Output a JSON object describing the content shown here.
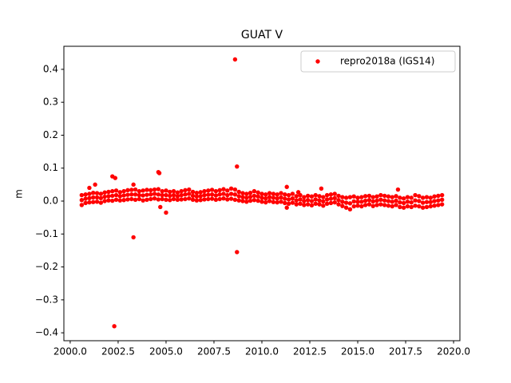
{
  "chart_data": {
    "type": "scatter",
    "title": "GUAT V",
    "y_label": "m",
    "xlim": [
      1999.67,
      2020.33
    ],
    "ylim": [
      -0.424,
      0.47
    ],
    "xticks": [
      {
        "value": 2000,
        "label": "2000.0"
      },
      {
        "value": 2002.5,
        "label": "2002.5"
      },
      {
        "value": 2005,
        "label": "2005.0"
      },
      {
        "value": 2007.5,
        "label": "2007.5"
      },
      {
        "value": 2010,
        "label": "2010.0"
      },
      {
        "value": 2012.5,
        "label": "2012.5"
      },
      {
        "value": 2015,
        "label": "2015.0"
      },
      {
        "value": 2017.5,
        "label": "2017.5"
      },
      {
        "value": 2020,
        "label": "2020.0"
      }
    ],
    "yticks": [
      {
        "value": -0.4,
        "label": "−0.4"
      },
      {
        "value": -0.3,
        "label": "−0.3"
      },
      {
        "value": -0.2,
        "label": "−0.2"
      },
      {
        "value": -0.1,
        "label": "−0.1"
      },
      {
        "value": 0,
        "label": "0.0"
      },
      0.1,
      0.2,
      0.3,
      0.4
    ],
    "grid": false,
    "legend_position": "upper right",
    "series": [
      {
        "name": "repro2018a (IGS14)",
        "color": "#ff0000",
        "x": [
          2000.6,
          2000.6,
          2000.6,
          2000.8,
          2000.8,
          2000.8,
          2001.0,
          2001.0,
          2001.0,
          2001.2,
          2001.2,
          2001.2,
          2001.4,
          2001.4,
          2001.4,
          2001.6,
          2001.6,
          2001.6,
          2001.8,
          2001.8,
          2001.8,
          2002.0,
          2002.0,
          2002.0,
          2002.2,
          2002.2,
          2002.2,
          2002.4,
          2002.4,
          2002.4,
          2002.6,
          2002.6,
          2002.6,
          2002.8,
          2002.8,
          2002.8,
          2003.0,
          2003.0,
          2003.0,
          2003.2,
          2003.2,
          2003.2,
          2003.4,
          2003.4,
          2003.4,
          2003.6,
          2003.6,
          2003.6,
          2003.8,
          2003.8,
          2003.8,
          2004.0,
          2004.0,
          2004.0,
          2004.2,
          2004.2,
          2004.2,
          2004.4,
          2004.4,
          2004.4,
          2004.6,
          2004.6,
          2004.6,
          2004.8,
          2004.8,
          2004.8,
          2005.0,
          2005.0,
          2005.0,
          2005.2,
          2005.2,
          2005.2,
          2005.4,
          2005.4,
          2005.4,
          2005.6,
          2005.6,
          2005.6,
          2005.8,
          2005.8,
          2005.8,
          2006.0,
          2006.0,
          2006.0,
          2006.2,
          2006.2,
          2006.2,
          2006.4,
          2006.4,
          2006.4,
          2006.6,
          2006.6,
          2006.6,
          2006.8,
          2006.8,
          2006.8,
          2007.0,
          2007.0,
          2007.0,
          2007.2,
          2007.2,
          2007.2,
          2007.4,
          2007.4,
          2007.4,
          2007.6,
          2007.6,
          2007.6,
          2007.8,
          2007.8,
          2007.8,
          2008.0,
          2008.0,
          2008.0,
          2008.2,
          2008.2,
          2008.2,
          2008.4,
          2008.4,
          2008.4,
          2008.6,
          2008.6,
          2008.6,
          2008.8,
          2008.8,
          2008.8,
          2009.0,
          2009.0,
          2009.0,
          2009.2,
          2009.2,
          2009.2,
          2009.4,
          2009.4,
          2009.4,
          2009.6,
          2009.6,
          2009.6,
          2009.8,
          2009.8,
          2009.8,
          2010.0,
          2010.0,
          2010.0,
          2010.2,
          2010.2,
          2010.2,
          2010.4,
          2010.4,
          2010.4,
          2010.6,
          2010.6,
          2010.6,
          2010.8,
          2010.8,
          2010.8,
          2011.0,
          2011.0,
          2011.0,
          2011.2,
          2011.2,
          2011.2,
          2011.4,
          2011.4,
          2011.4,
          2011.6,
          2011.6,
          2011.6,
          2011.8,
          2011.8,
          2011.8,
          2012.0,
          2012.0,
          2012.0,
          2012.2,
          2012.2,
          2012.2,
          2012.4,
          2012.4,
          2012.4,
          2012.6,
          2012.6,
          2012.6,
          2012.8,
          2012.8,
          2012.8,
          2013.0,
          2013.0,
          2013.0,
          2013.2,
          2013.2,
          2013.2,
          2013.4,
          2013.4,
          2013.4,
          2013.6,
          2013.6,
          2013.6,
          2013.8,
          2013.8,
          2013.8,
          2014.0,
          2014.0,
          2014.0,
          2014.2,
          2014.2,
          2014.2,
          2014.4,
          2014.4,
          2014.4,
          2014.6,
          2014.6,
          2014.6,
          2014.8,
          2014.8,
          2014.8,
          2015.0,
          2015.0,
          2015.0,
          2015.2,
          2015.2,
          2015.2,
          2015.4,
          2015.4,
          2015.4,
          2015.6,
          2015.6,
          2015.6,
          2015.8,
          2015.8,
          2015.8,
          2016.0,
          2016.0,
          2016.0,
          2016.2,
          2016.2,
          2016.2,
          2016.4,
          2016.4,
          2016.4,
          2016.6,
          2016.6,
          2016.6,
          2016.8,
          2016.8,
          2016.8,
          2017.0,
          2017.0,
          2017.0,
          2017.2,
          2017.2,
          2017.2,
          2017.4,
          2017.4,
          2017.4,
          2017.6,
          2017.6,
          2017.6,
          2017.8,
          2017.8,
          2017.8,
          2018.0,
          2018.0,
          2018.0,
          2018.2,
          2018.2,
          2018.2,
          2018.4,
          2018.4,
          2018.4,
          2018.6,
          2018.6,
          2018.6,
          2018.8,
          2018.8,
          2018.8,
          2019.0,
          2019.0,
          2019.0,
          2019.2,
          2019.2,
          2019.2,
          2019.4,
          2019.4,
          2019.4,
          2002.3,
          2002.2,
          2002.35,
          2003.3,
          2003.3,
          2004.6,
          2004.65,
          2004.7,
          2005.0,
          2008.6,
          2008.7,
          2008.7,
          2001.3,
          2001.0,
          2011.3,
          2011.3,
          2011.9,
          2013.1,
          2017.1
        ],
        "values": [
          0.018,
          0.003,
          -0.012,
          0.02,
          0.007,
          -0.006,
          0.022,
          0.009,
          -0.004,
          0.025,
          0.011,
          -0.003,
          0.024,
          0.011,
          -0.002,
          0.022,
          0.009,
          -0.005,
          0.026,
          0.013,
          0.0,
          0.028,
          0.015,
          0.002,
          0.03,
          0.016,
          0.001,
          0.032,
          0.018,
          0.004,
          0.027,
          0.015,
          0.002,
          0.03,
          0.017,
          0.003,
          0.033,
          0.019,
          0.005,
          0.034,
          0.02,
          0.006,
          0.035,
          0.02,
          0.004,
          0.03,
          0.018,
          0.006,
          0.032,
          0.017,
          0.002,
          0.034,
          0.019,
          0.004,
          0.033,
          0.02,
          0.006,
          0.035,
          0.022,
          0.008,
          0.036,
          0.02,
          0.005,
          0.03,
          0.018,
          0.006,
          0.032,
          0.018,
          0.004,
          0.028,
          0.016,
          0.003,
          0.03,
          0.018,
          0.006,
          0.026,
          0.015,
          0.004,
          0.03,
          0.018,
          0.005,
          0.033,
          0.02,
          0.006,
          0.035,
          0.022,
          0.008,
          0.028,
          0.016,
          0.004,
          0.025,
          0.014,
          0.002,
          0.027,
          0.015,
          0.003,
          0.03,
          0.018,
          0.005,
          0.032,
          0.019,
          0.006,
          0.034,
          0.02,
          0.007,
          0.03,
          0.017,
          0.004,
          0.033,
          0.02,
          0.006,
          0.036,
          0.022,
          0.008,
          0.032,
          0.018,
          0.005,
          0.038,
          0.022,
          0.007,
          0.035,
          0.02,
          0.004,
          0.028,
          0.015,
          0.002,
          0.024,
          0.012,
          0.0,
          0.022,
          0.01,
          -0.002,
          0.025,
          0.013,
          0.001,
          0.03,
          0.016,
          0.003,
          0.026,
          0.014,
          0.001,
          0.022,
          0.01,
          -0.002,
          0.02,
          0.008,
          -0.004,
          0.024,
          0.012,
          0.0,
          0.022,
          0.01,
          -0.003,
          0.02,
          0.008,
          -0.004,
          0.024,
          0.011,
          -0.002,
          0.02,
          0.007,
          -0.006,
          0.018,
          0.005,
          -0.008,
          0.022,
          0.008,
          -0.005,
          0.015,
          0.002,
          -0.01,
          0.018,
          0.005,
          -0.008,
          0.012,
          0.0,
          -0.012,
          0.016,
          0.003,
          -0.01,
          0.014,
          0.0,
          -0.013,
          0.018,
          0.005,
          -0.008,
          0.015,
          0.002,
          -0.01,
          0.012,
          -0.001,
          -0.014,
          0.018,
          0.005,
          -0.008,
          0.02,
          0.007,
          -0.006,
          0.022,
          0.009,
          -0.004,
          0.016,
          0.003,
          -0.01,
          0.012,
          -0.002,
          -0.015,
          0.01,
          -0.005,
          -0.02,
          0.012,
          -0.007,
          -0.025,
          0.014,
          -0.001,
          -0.016,
          0.01,
          -0.002,
          -0.014,
          0.012,
          -0.002,
          -0.016,
          0.015,
          0.001,
          -0.012,
          0.016,
          0.003,
          -0.01,
          0.012,
          -0.001,
          -0.015,
          0.014,
          0.001,
          -0.012,
          0.018,
          0.004,
          -0.01,
          0.016,
          0.002,
          -0.012,
          0.014,
          0.0,
          -0.014,
          0.012,
          -0.002,
          -0.016,
          0.015,
          0.001,
          -0.012,
          0.01,
          -0.004,
          -0.018,
          0.008,
          -0.006,
          -0.02,
          0.012,
          -0.002,
          -0.016,
          0.01,
          -0.004,
          -0.018,
          0.018,
          0.002,
          -0.014,
          0.015,
          0.0,
          -0.016,
          0.01,
          -0.005,
          -0.02,
          0.012,
          -0.003,
          -0.018,
          0.01,
          -0.003,
          -0.016,
          0.014,
          0.0,
          -0.014,
          0.016,
          0.002,
          -0.012,
          0.018,
          0.004,
          -0.01,
          -0.38,
          0.075,
          0.07,
          -0.11,
          0.05,
          0.088,
          0.085,
          -0.018,
          -0.035,
          0.43,
          0.105,
          -0.155,
          0.05,
          0.04,
          0.043,
          -0.02,
          0.027,
          0.038,
          0.035
        ]
      }
    ]
  }
}
